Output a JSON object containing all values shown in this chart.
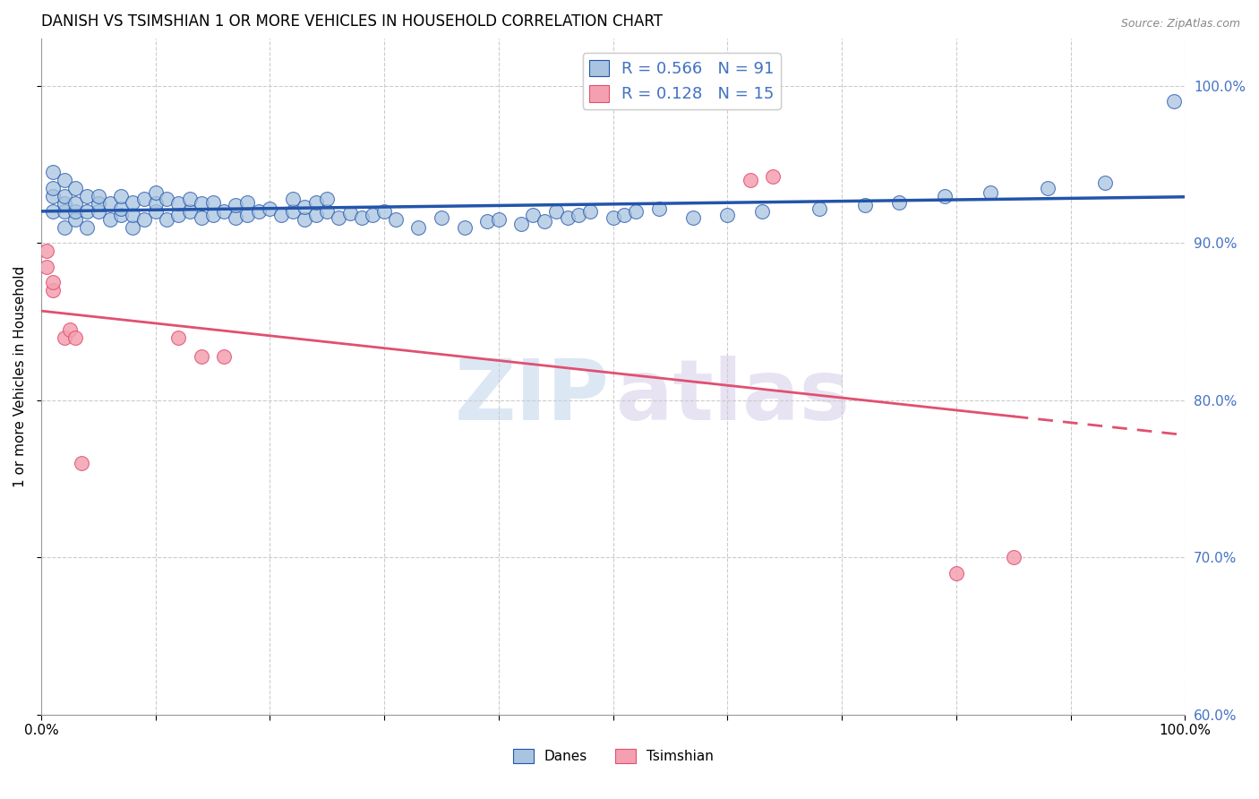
{
  "title": "DANISH VS TSIMSHIAN 1 OR MORE VEHICLES IN HOUSEHOLD CORRELATION CHART",
  "source": "Source: ZipAtlas.com",
  "ylabel": "1 or more Vehicles in Household",
  "xmin": 0.0,
  "xmax": 1.0,
  "ymin": 0.6,
  "ymax": 1.03,
  "blue_R": 0.566,
  "blue_N": 91,
  "pink_R": 0.128,
  "pink_N": 15,
  "blue_color": "#a8c4e0",
  "blue_line_color": "#2255aa",
  "pink_color": "#f4a0b0",
  "pink_line_color": "#e05070",
  "legend_blue_label": "Danes",
  "legend_pink_label": "Tsimshian",
  "danes_x": [
    0.01,
    0.01,
    0.01,
    0.01,
    0.02,
    0.02,
    0.02,
    0.02,
    0.02,
    0.03,
    0.03,
    0.03,
    0.03,
    0.04,
    0.04,
    0.04,
    0.05,
    0.05,
    0.05,
    0.06,
    0.06,
    0.07,
    0.07,
    0.07,
    0.08,
    0.08,
    0.08,
    0.09,
    0.09,
    0.1,
    0.1,
    0.1,
    0.11,
    0.11,
    0.12,
    0.12,
    0.13,
    0.13,
    0.14,
    0.14,
    0.15,
    0.15,
    0.16,
    0.17,
    0.17,
    0.18,
    0.18,
    0.19,
    0.2,
    0.21,
    0.22,
    0.22,
    0.23,
    0.23,
    0.24,
    0.24,
    0.25,
    0.25,
    0.26,
    0.27,
    0.28,
    0.29,
    0.3,
    0.31,
    0.33,
    0.35,
    0.37,
    0.39,
    0.4,
    0.42,
    0.43,
    0.44,
    0.45,
    0.46,
    0.47,
    0.48,
    0.5,
    0.51,
    0.52,
    0.54,
    0.57,
    0.6,
    0.63,
    0.68,
    0.72,
    0.75,
    0.79,
    0.83,
    0.88,
    0.93,
    0.99
  ],
  "danes_y": [
    0.92,
    0.93,
    0.935,
    0.945,
    0.91,
    0.92,
    0.925,
    0.93,
    0.94,
    0.915,
    0.92,
    0.925,
    0.935,
    0.91,
    0.92,
    0.93,
    0.92,
    0.925,
    0.93,
    0.915,
    0.925,
    0.918,
    0.922,
    0.93,
    0.91,
    0.918,
    0.926,
    0.915,
    0.928,
    0.92,
    0.925,
    0.932,
    0.915,
    0.928,
    0.918,
    0.925,
    0.92,
    0.928,
    0.916,
    0.925,
    0.918,
    0.926,
    0.92,
    0.916,
    0.924,
    0.918,
    0.926,
    0.92,
    0.922,
    0.918,
    0.92,
    0.928,
    0.915,
    0.923,
    0.918,
    0.926,
    0.92,
    0.928,
    0.916,
    0.919,
    0.916,
    0.918,
    0.92,
    0.915,
    0.91,
    0.916,
    0.91,
    0.914,
    0.915,
    0.912,
    0.918,
    0.914,
    0.92,
    0.916,
    0.918,
    0.92,
    0.916,
    0.918,
    0.92,
    0.922,
    0.916,
    0.918,
    0.92,
    0.922,
    0.924,
    0.926,
    0.93,
    0.932,
    0.935,
    0.938,
    0.99
  ],
  "tsimshian_x": [
    0.005,
    0.005,
    0.01,
    0.01,
    0.02,
    0.025,
    0.03,
    0.035,
    0.12,
    0.14,
    0.16,
    0.62,
    0.64,
    0.8,
    0.85
  ],
  "tsimshian_y": [
    0.885,
    0.895,
    0.87,
    0.875,
    0.84,
    0.845,
    0.84,
    0.76,
    0.84,
    0.828,
    0.828,
    0.94,
    0.942,
    0.69,
    0.7
  ]
}
